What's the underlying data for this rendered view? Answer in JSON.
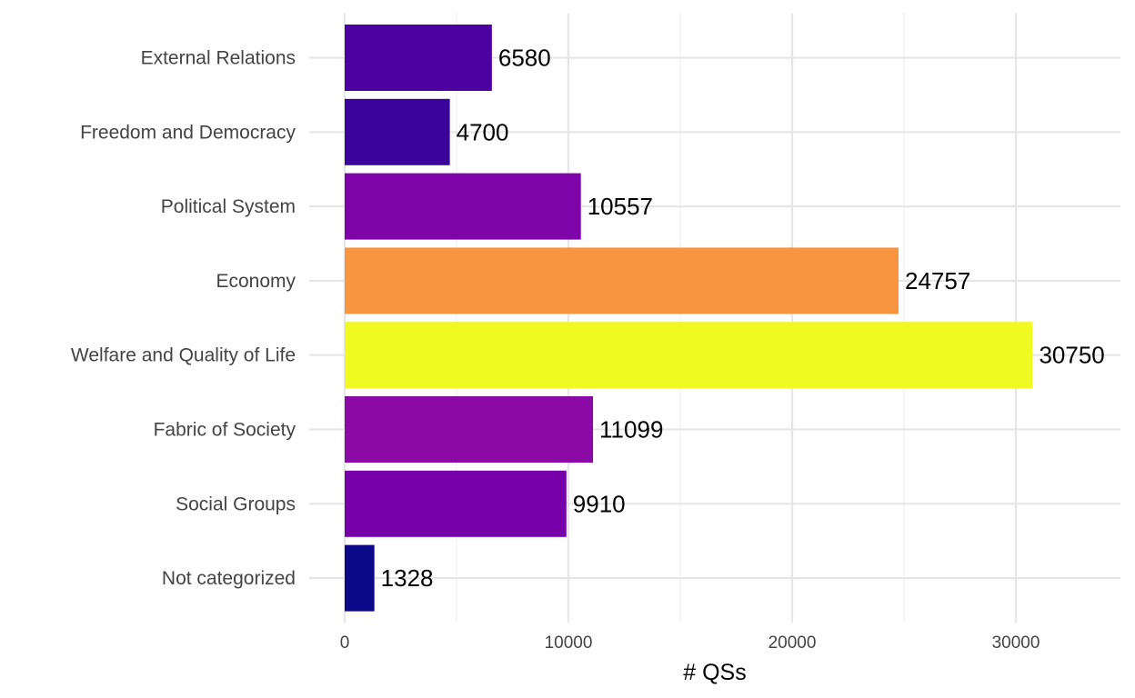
{
  "chart_data": {
    "type": "bar",
    "orientation": "horizontal",
    "title": "",
    "xlabel": "# QSs",
    "ylabel": "",
    "xlim": [
      0,
      34500
    ],
    "xticks": [
      0,
      10000,
      20000,
      30000
    ],
    "grid": true,
    "legend": "none",
    "categories": [
      "External Relations",
      "Freedom and Democracy",
      "Political System",
      "Economy",
      "Welfare and Quality of Life",
      "Fabric of Society",
      "Social Groups",
      "Not categorized"
    ],
    "values": [
      6580,
      4700,
      10557,
      24757,
      30750,
      11099,
      9910,
      1328
    ],
    "colors": [
      "#4c02a1",
      "#3a049a",
      "#7e03a8",
      "#f89540",
      "#f0f921",
      "#8b0aa5",
      "#7701a8",
      "#0d0887"
    ]
  }
}
